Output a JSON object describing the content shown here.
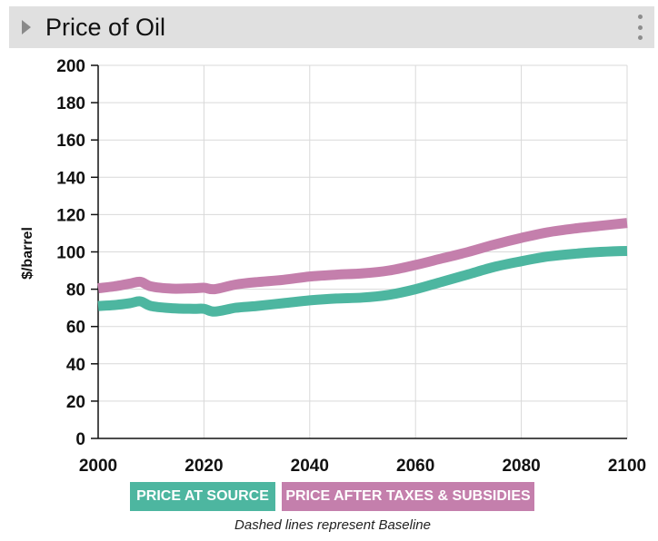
{
  "header": {
    "title": "Price of Oil"
  },
  "chart_data": {
    "type": "line",
    "title": "Price of Oil",
    "xlabel": "",
    "ylabel": "$/barrel",
    "xlim": [
      2000,
      2100
    ],
    "ylim": [
      0,
      200
    ],
    "xticks": [
      2000,
      2020,
      2040,
      2060,
      2080,
      2100
    ],
    "yticks": [
      0,
      20,
      40,
      60,
      80,
      100,
      120,
      140,
      160,
      180,
      200
    ],
    "grid": true,
    "series": [
      {
        "name": "PRICE AT SOURCE",
        "color": "#4db6a0",
        "x": [
          2000,
          2003,
          2006,
          2008,
          2010,
          2014,
          2018,
          2020,
          2022,
          2026,
          2030,
          2035,
          2040,
          2045,
          2050,
          2055,
          2060,
          2065,
          2070,
          2075,
          2080,
          2085,
          2090,
          2095,
          2100
        ],
        "values": [
          71,
          71.5,
          72.5,
          73.5,
          71,
          69.8,
          69.5,
          69.5,
          68,
          70,
          71,
          72.5,
          74,
          75,
          75.5,
          77,
          80,
          84,
          88,
          92,
          95,
          97.5,
          99,
          100,
          100.5
        ]
      },
      {
        "name": "PRICE AFTER TAXES & SUBSIDIES",
        "color": "#c47fac",
        "x": [
          2000,
          2003,
          2006,
          2008,
          2010,
          2014,
          2018,
          2020,
          2022,
          2026,
          2030,
          2035,
          2040,
          2045,
          2050,
          2055,
          2060,
          2065,
          2070,
          2075,
          2080,
          2085,
          2090,
          2095,
          2100
        ],
        "values": [
          80.5,
          81.5,
          83,
          84,
          81.5,
          80.3,
          80.5,
          80.8,
          80,
          82.5,
          83.8,
          85,
          86.8,
          87.8,
          88.5,
          90,
          93,
          96.5,
          100,
          104,
          107.5,
          110.5,
          112.5,
          114,
          115.5
        ]
      }
    ],
    "footnote": "Dashed lines represent Baseline"
  },
  "legend": [
    {
      "label": "PRICE AT SOURCE",
      "color": "#4db6a0"
    },
    {
      "label": "PRICE AFTER TAXES & SUBSIDIES",
      "color": "#c47fac"
    }
  ]
}
